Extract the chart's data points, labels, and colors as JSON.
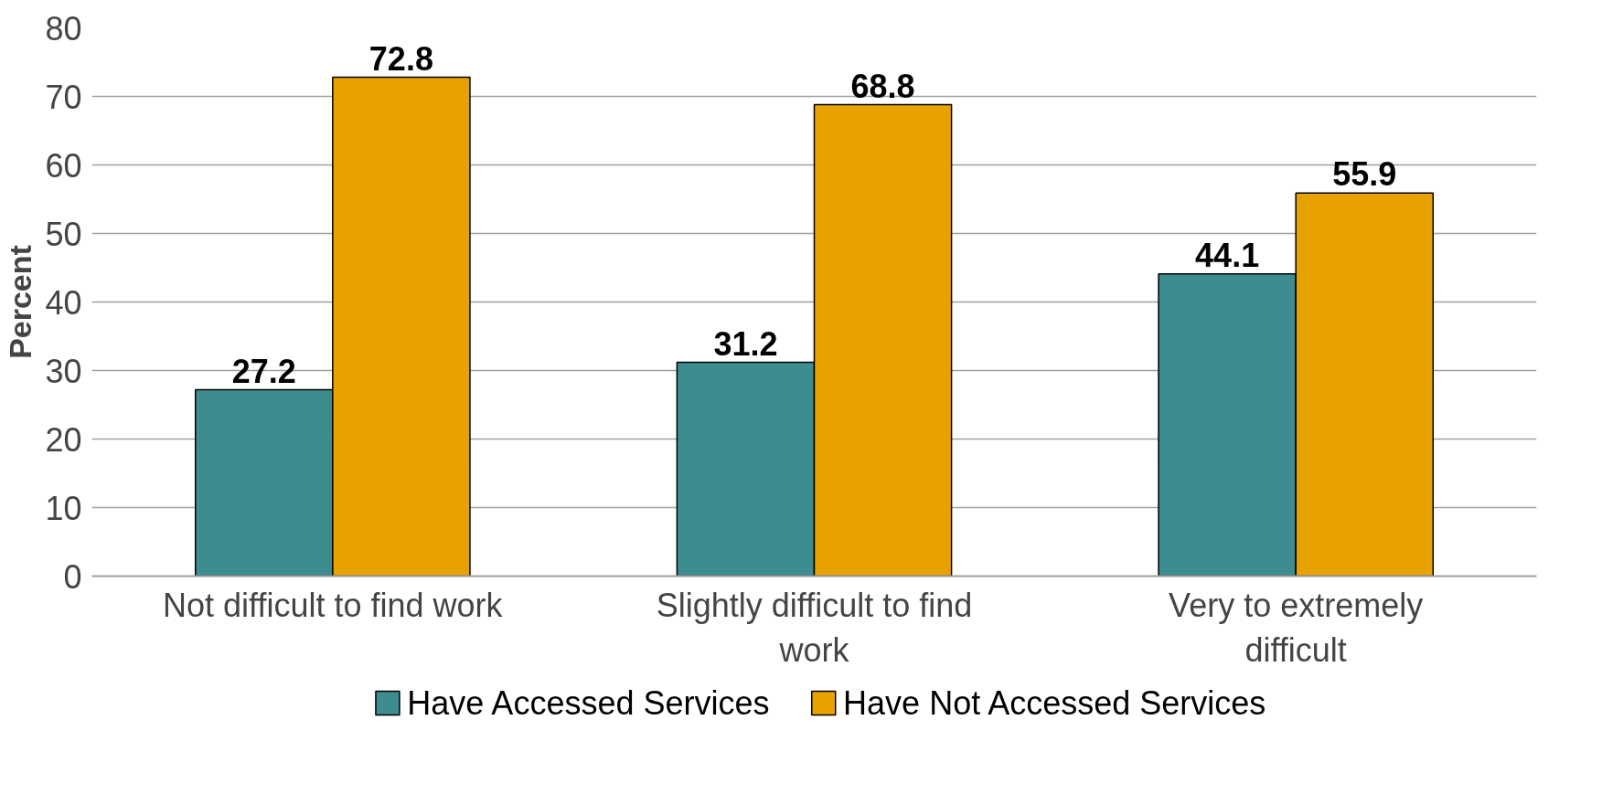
{
  "chart_data": {
    "type": "bar",
    "ylabel": "Percent",
    "categories": [
      "Not difficult to find work",
      "Slightly difficult to find work",
      "Very to extremely difficult"
    ],
    "series": [
      {
        "name": "Have Accessed Services",
        "color": "#3d8c8f",
        "values": [
          27.2,
          31.2,
          44.1
        ]
      },
      {
        "name": "Have Not Accessed Services",
        "color": "#e8a200",
        "values": [
          72.8,
          68.8,
          55.9
        ]
      }
    ],
    "ylim": [
      0,
      80
    ],
    "yticks": [
      0,
      10,
      20,
      30,
      40,
      50,
      60,
      70,
      80
    ],
    "grid": "y",
    "legend": "bottom",
    "data_labels": true
  }
}
